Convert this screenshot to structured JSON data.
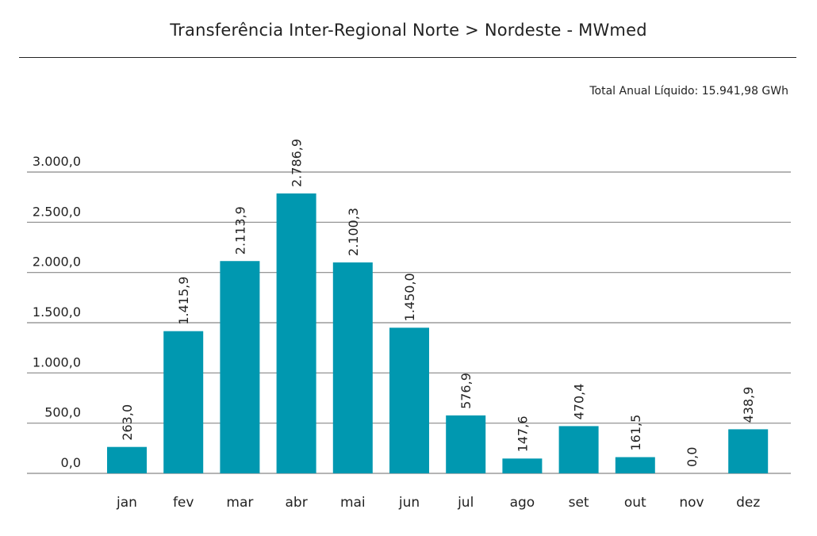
{
  "chart_data": {
    "type": "bar",
    "title": "Transferência Inter-Regional Norte > Nordeste - MWmed",
    "annotation": "Total Anual Líquido: 15.941,98 GWh",
    "categories": [
      "jan",
      "fev",
      "mar",
      "abr",
      "mai",
      "jun",
      "jul",
      "ago",
      "set",
      "out",
      "nov",
      "dez"
    ],
    "values": [
      263.0,
      1415.9,
      2113.9,
      2786.9,
      2100.3,
      1450.0,
      576.9,
      147.6,
      470.4,
      161.5,
      0.0,
      438.9
    ],
    "value_labels": [
      "263,0",
      "1.415,9",
      "2.113,9",
      "2.786,9",
      "2.100,3",
      "1.450,0",
      "576,9",
      "147,6",
      "470,4",
      "161,5",
      "0,0",
      "438,9"
    ],
    "yticks": [
      0,
      500,
      1000,
      1500,
      2000,
      2500,
      3000
    ],
    "ytick_labels": [
      "0,0",
      "500,0",
      "1.000,0",
      "1.500,0",
      "2.000,0",
      "2.500,0",
      "3.000,0"
    ],
    "ylim": [
      0,
      3000
    ],
    "grid": true,
    "bar_color": "#0098b0",
    "grid_color": "#888888"
  }
}
